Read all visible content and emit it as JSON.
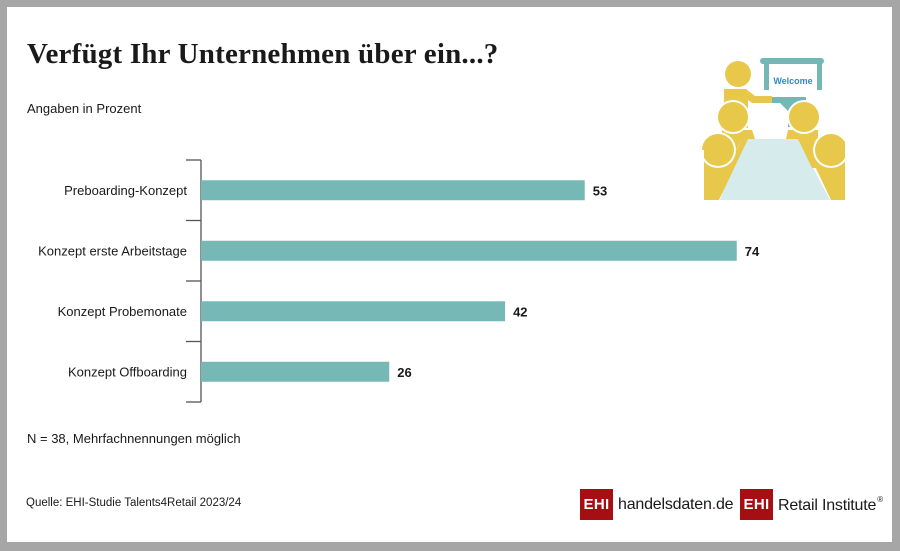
{
  "title": "Verfügt Ihr Unternehmen über ein...?",
  "subtitle": "Angaben in Prozent",
  "note": "N = 38, Mehrfachnennungen möglich",
  "source": "Quelle: EHI-Studie Talents4Retail 2023/24",
  "illustration": {
    "icon": "meeting-presentation-icon",
    "board_text": "Welcome",
    "colors": {
      "person": "#e8c84a",
      "board": "#74b8b6",
      "table": "#d5ebec",
      "board_text": "#2e8bc9"
    }
  },
  "logos": [
    {
      "box": "EHI",
      "text_main": "handelsdaten",
      "text_dot": ".",
      "text_tail": "de"
    },
    {
      "box": "EHI",
      "text_main": "Retail Institute",
      "text_reg": "®"
    }
  ],
  "colors": {
    "bar": "#75b8b6",
    "axis": "#555555",
    "brand_red": "#a50f14"
  },
  "chart_data": {
    "type": "bar",
    "orientation": "horizontal",
    "title": "Verfügt Ihr Unternehmen über ein...?",
    "subtitle": "Angaben in Prozent",
    "xlabel": "",
    "ylabel": "",
    "categories": [
      "Preboarding-Konzept",
      "Konzept erste Arbeitstage",
      "Konzept Probemonate",
      "Konzept Offboarding"
    ],
    "values": [
      53,
      74,
      42,
      26
    ],
    "value_labels": [
      "53",
      "74",
      "42",
      "26"
    ],
    "xlim": [
      0,
      100
    ],
    "grid": false,
    "legend": "none",
    "unit": "%"
  }
}
